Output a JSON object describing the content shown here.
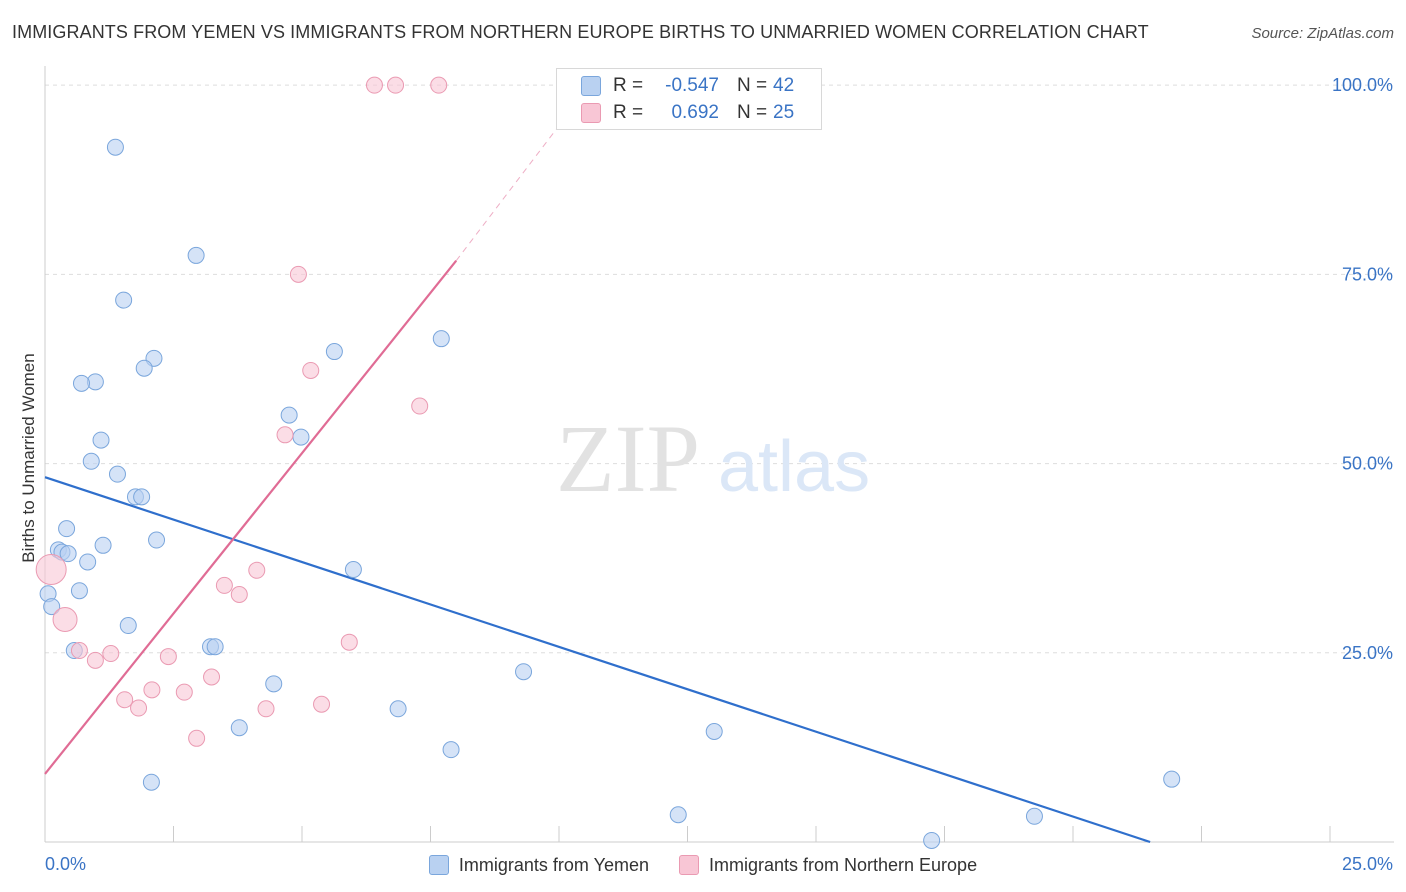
{
  "header": {
    "title": "IMMIGRANTS FROM YEMEN VS IMMIGRANTS FROM NORTHERN EUROPE BIRTHS TO UNMARRIED WOMEN CORRELATION CHART",
    "source": "Source: ZipAtlas.com"
  },
  "watermark": {
    "zip": "ZIP",
    "atlas": "atlas"
  },
  "stats": [
    {
      "r_label": "R =",
      "r_value": "-0.547",
      "n_label": "N =",
      "n_value": "42"
    },
    {
      "r_label": "R =",
      "r_value": "0.692",
      "n_label": "N =",
      "n_value": "25"
    }
  ],
  "legend": [
    {
      "label": "Immigrants from Yemen"
    },
    {
      "label": "Immigrants from Northern Europe"
    }
  ],
  "colors": {
    "blue_fill": "#b9d1f1",
    "blue_stroke": "#7aa6dc",
    "blue_line": "#2f6fcc",
    "pink_fill": "#f8c6d5",
    "pink_stroke": "#ea9ab2",
    "pink_line": "#e06c95",
    "axis_text": "#3a74c5",
    "grid": "#dddddd"
  },
  "chart_data": {
    "type": "scatter",
    "title": "IMMIGRANTS FROM YEMEN VS IMMIGRANTS FROM NORTHERN EUROPE BIRTHS TO UNMARRIED WOMEN CORRELATION CHART",
    "xlabel": "",
    "ylabel": "Births to Unmarried Women",
    "xlim": [
      0,
      25
    ],
    "ylim": [
      0,
      102
    ],
    "x_tick_labels": [
      {
        "value": 0,
        "label": "0.0%"
      },
      {
        "value": 25,
        "label": "25.0%"
      }
    ],
    "y_tick_labels": [
      {
        "value": 25,
        "label": "25.0%"
      },
      {
        "value": 50,
        "label": "50.0%"
      },
      {
        "value": 75,
        "label": "75.0%"
      },
      {
        "value": 100,
        "label": "100.0%"
      }
    ],
    "series": [
      {
        "name": "Immigrants from Yemen",
        "color": "blue",
        "points": [
          {
            "x": 1.37,
            "y": 91.8
          },
          {
            "x": 2.94,
            "y": 77.5
          },
          {
            "x": 1.53,
            "y": 71.6
          },
          {
            "x": 2.12,
            "y": 63.9
          },
          {
            "x": 1.93,
            "y": 62.6
          },
          {
            "x": 0.98,
            "y": 60.8
          },
          {
            "x": 0.71,
            "y": 60.6
          },
          {
            "x": 5.63,
            "y": 64.8
          },
          {
            "x": 7.71,
            "y": 66.5
          },
          {
            "x": 4.75,
            "y": 56.4
          },
          {
            "x": 4.98,
            "y": 53.5
          },
          {
            "x": 1.09,
            "y": 53.1
          },
          {
            "x": 0.9,
            "y": 50.3
          },
          {
            "x": 1.41,
            "y": 48.6
          },
          {
            "x": 1.76,
            "y": 45.6
          },
          {
            "x": 1.88,
            "y": 45.6
          },
          {
            "x": 0.42,
            "y": 41.4
          },
          {
            "x": 2.17,
            "y": 39.9
          },
          {
            "x": 1.13,
            "y": 39.2
          },
          {
            "x": 0.26,
            "y": 38.6
          },
          {
            "x": 0.33,
            "y": 38.3
          },
          {
            "x": 0.45,
            "y": 38.1
          },
          {
            "x": 0.83,
            "y": 37.0
          },
          {
            "x": 6.0,
            "y": 36.0
          },
          {
            "x": 0.67,
            "y": 33.2
          },
          {
            "x": 0.06,
            "y": 32.8
          },
          {
            "x": 0.13,
            "y": 31.1
          },
          {
            "x": 1.62,
            "y": 28.6
          },
          {
            "x": 0.57,
            "y": 25.3
          },
          {
            "x": 3.22,
            "y": 25.8
          },
          {
            "x": 3.31,
            "y": 25.8
          },
          {
            "x": 9.31,
            "y": 22.5
          },
          {
            "x": 4.45,
            "y": 20.9
          },
          {
            "x": 6.87,
            "y": 17.6
          },
          {
            "x": 3.78,
            "y": 15.1
          },
          {
            "x": 13.02,
            "y": 14.6
          },
          {
            "x": 7.9,
            "y": 12.2
          },
          {
            "x": 2.07,
            "y": 7.9
          },
          {
            "x": 21.92,
            "y": 8.3
          },
          {
            "x": 12.32,
            "y": 3.6
          },
          {
            "x": 19.25,
            "y": 3.4
          },
          {
            "x": 17.25,
            "y": 0.2
          }
        ]
      },
      {
        "name": "Immigrants from Northern Europe",
        "color": "pink",
        "points": [
          {
            "x": 6.41,
            "y": 100.0
          },
          {
            "x": 6.82,
            "y": 100.0
          },
          {
            "x": 7.66,
            "y": 100.0
          },
          {
            "x": 4.93,
            "y": 75.0
          },
          {
            "x": 5.17,
            "y": 62.3
          },
          {
            "x": 7.29,
            "y": 57.6
          },
          {
            "x": 4.67,
            "y": 53.8
          },
          {
            "x": 0.12,
            "y": 36.0
          },
          {
            "x": 4.12,
            "y": 35.9
          },
          {
            "x": 3.49,
            "y": 33.9
          },
          {
            "x": 3.78,
            "y": 32.7
          },
          {
            "x": 0.39,
            "y": 29.4
          },
          {
            "x": 5.92,
            "y": 26.4
          },
          {
            "x": 0.67,
            "y": 25.3
          },
          {
            "x": 1.28,
            "y": 24.9
          },
          {
            "x": 0.98,
            "y": 24.0
          },
          {
            "x": 2.4,
            "y": 24.5
          },
          {
            "x": 3.24,
            "y": 21.8
          },
          {
            "x": 2.08,
            "y": 20.1
          },
          {
            "x": 2.71,
            "y": 19.8
          },
          {
            "x": 1.55,
            "y": 18.8
          },
          {
            "x": 1.82,
            "y": 17.7
          },
          {
            "x": 4.3,
            "y": 17.6
          },
          {
            "x": 5.38,
            "y": 18.2
          },
          {
            "x": 2.95,
            "y": 13.7
          }
        ]
      }
    ],
    "trend_lines": [
      {
        "series": "Immigrants from Yemen",
        "from": {
          "x": 0,
          "y": 48.2
        },
        "to": {
          "x": 21.5,
          "y": 0
        }
      },
      {
        "series": "Immigrants from Northern Europe",
        "from": {
          "x": 0,
          "y": 9.0
        },
        "to": {
          "x": 8.0,
          "y": 76.8
        },
        "dashed_to": {
          "x": 10.6,
          "y": 100.0
        }
      }
    ]
  }
}
